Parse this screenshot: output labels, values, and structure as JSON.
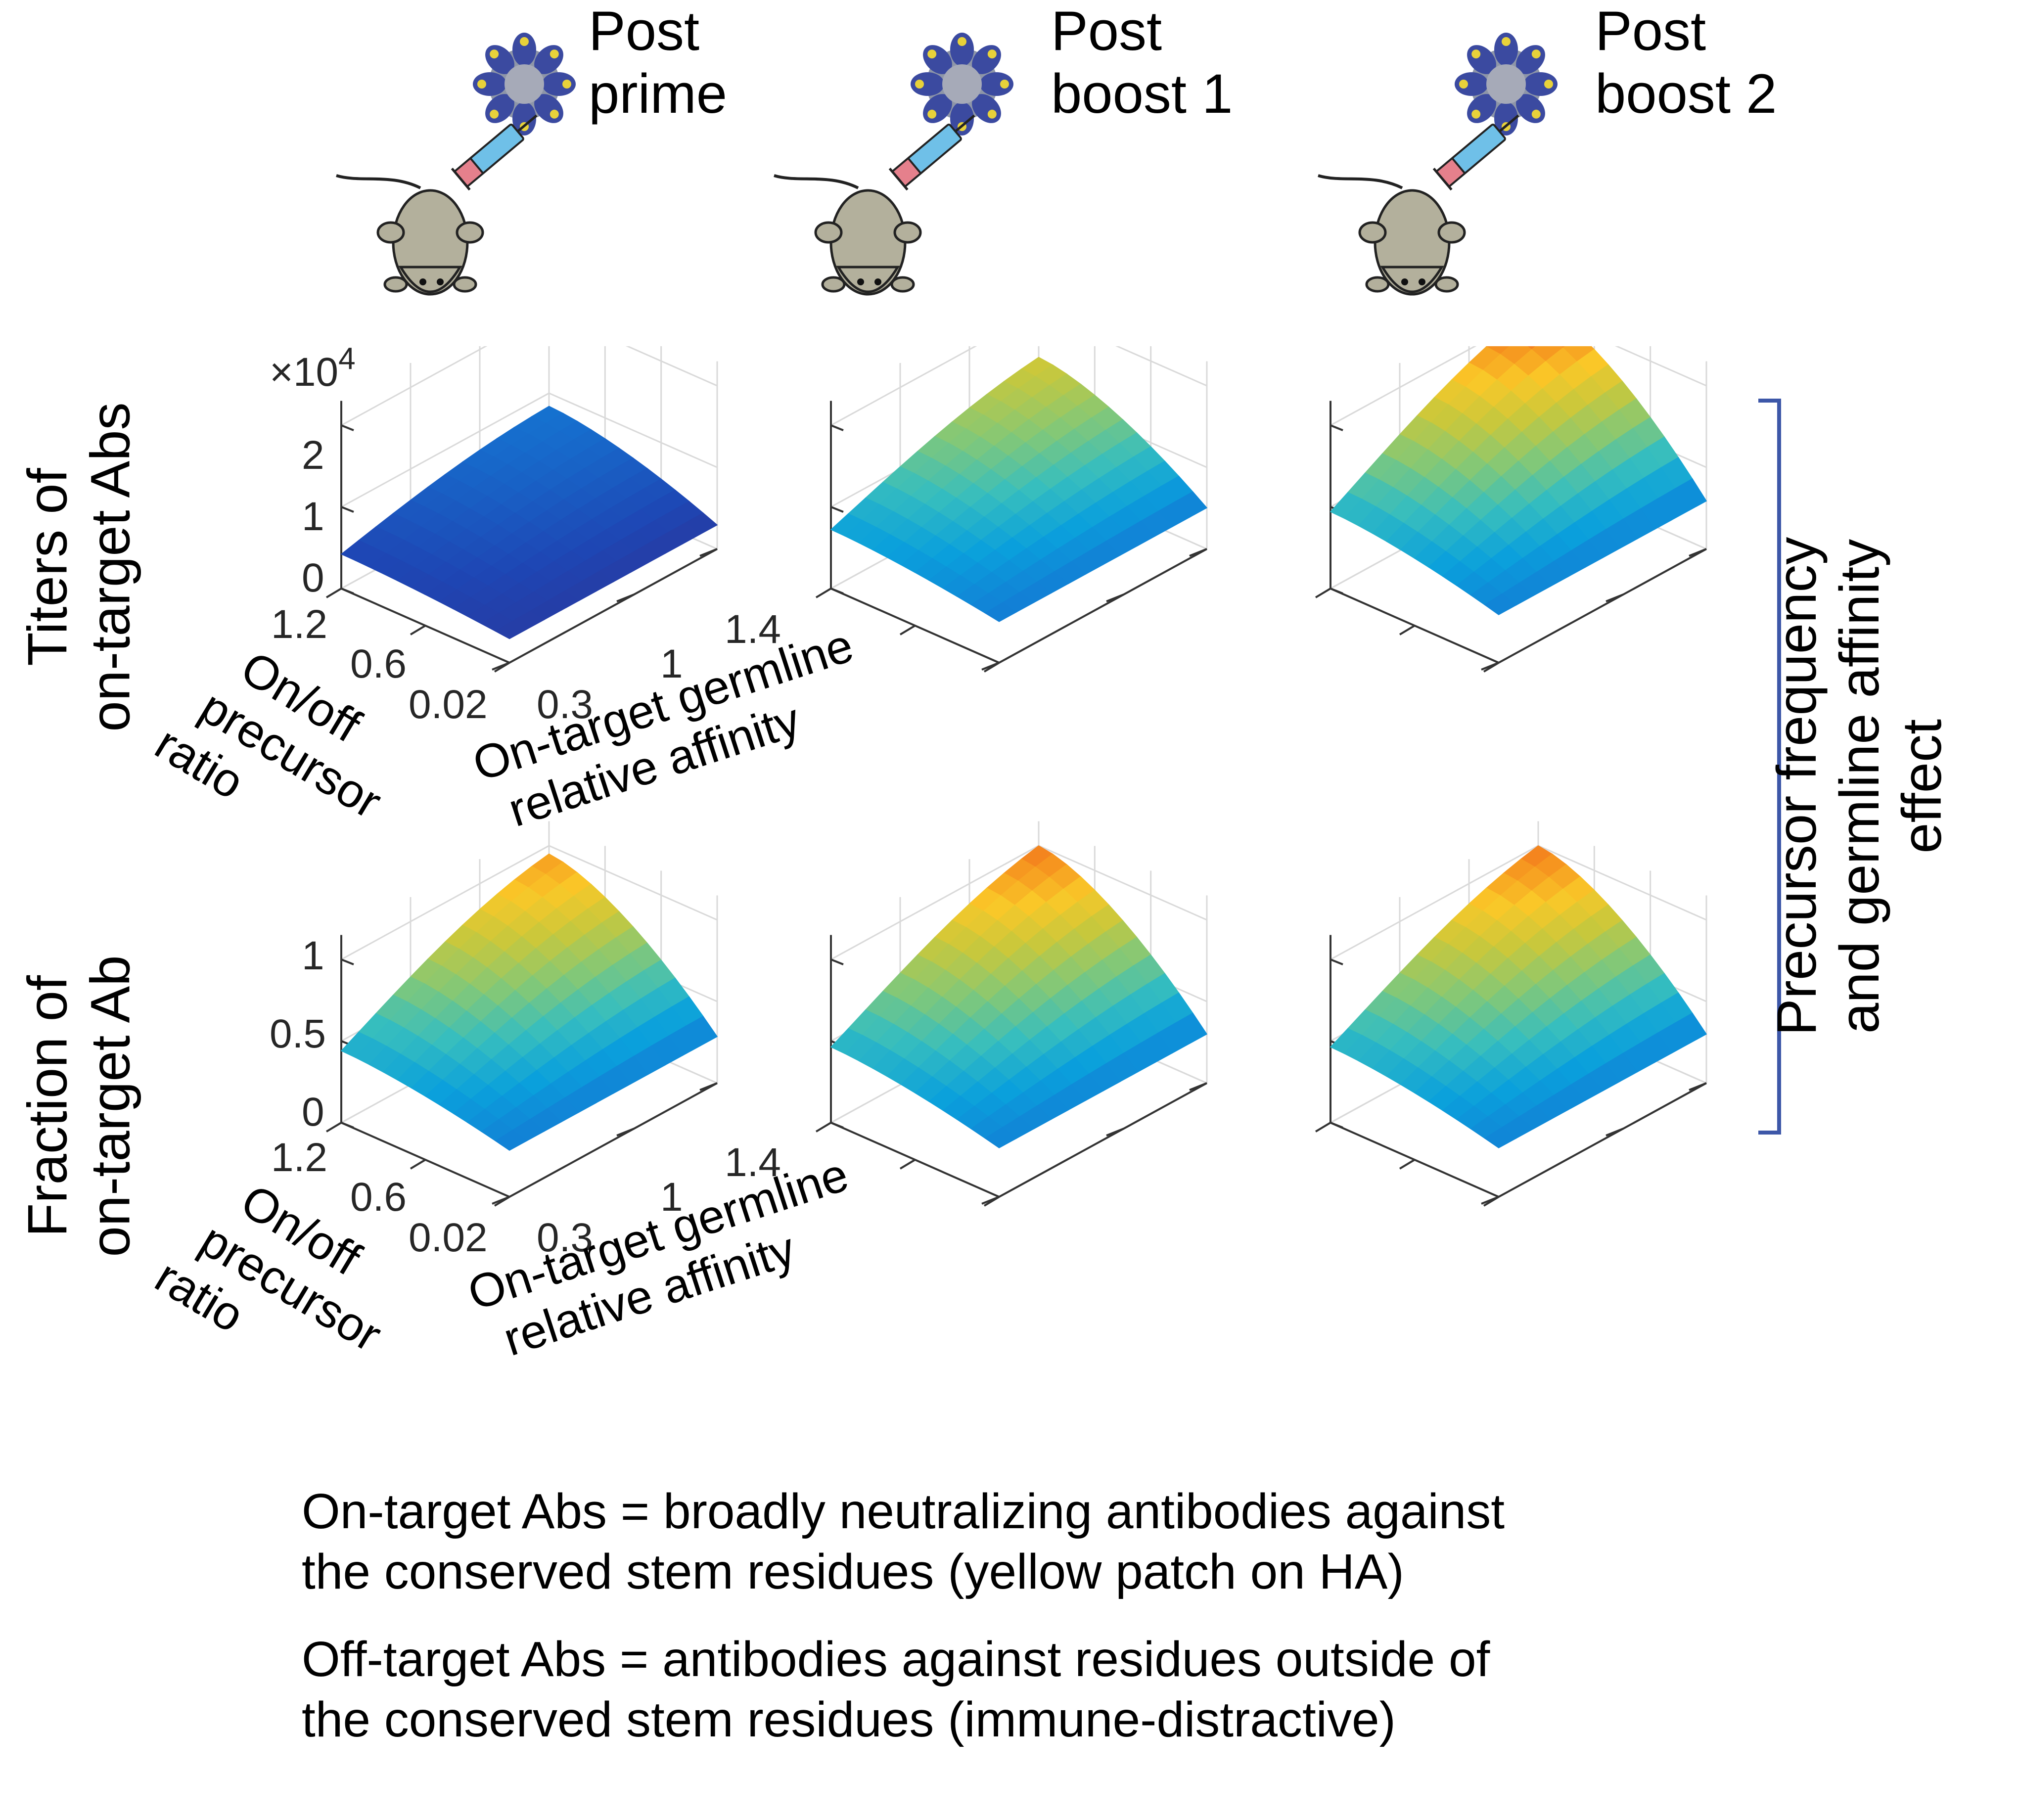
{
  "columns": [
    {
      "title_line1": "Post",
      "title_line2": "prime"
    },
    {
      "title_line1": "Post",
      "title_line2": "boost 1"
    },
    {
      "title_line1": "Post",
      "title_line2": "boost 2"
    }
  ],
  "rows": [
    {
      "label_line1": "Titers of",
      "label_line2": "on-target Abs"
    },
    {
      "label_line1": "Fraction of",
      "label_line2": "on-target Ab"
    }
  ],
  "side_label": {
    "line1": "Precursor frequency",
    "line2": "and germline affinity",
    "line3": "effect"
  },
  "axes": {
    "x_label_line1": "On/off",
    "x_label_line2": "precursor",
    "x_label_line3": "ratio",
    "x_ticks": [
      "1.2",
      "0.6",
      "0.02"
    ],
    "y_label_line1": "On-target germline",
    "y_label_line2": "relative affinity",
    "y_ticks": [
      "0.3",
      "1",
      "1.4"
    ],
    "z_ticks_titers": [
      "0",
      "1",
      "2"
    ],
    "z_exponent_prefix": "×10",
    "z_exponent_power": "4",
    "z_ticks_fraction": [
      "0",
      "0.5",
      "1"
    ]
  },
  "notes": {
    "line1": "On-target Abs = broadly neutralizing antibodies against",
    "line2": "the conserved stem residues (yellow patch on HA)",
    "line3": "Off-target Abs = antibodies against residues outside of",
    "line4": "the conserved stem residues (immune-distractive)"
  },
  "colors": {
    "bracket": "#3d57a8",
    "mouse_body": "#b3b09c",
    "syringe_tip": "#e5808c",
    "syringe_body": "#6fc0e8"
  },
  "icons": [
    "mouse-icon",
    "syringe-icon",
    "nanoparticle-icon"
  ],
  "chart_data": [
    {
      "type": "surface",
      "panel": "titers-post-prime",
      "x": "On/off precursor ratio",
      "y": "On-target germline relative affinity",
      "zlim": [
        0,
        20000
      ],
      "z_max": 4500,
      "colormap": "parula"
    },
    {
      "type": "surface",
      "panel": "titers-post-boost-1",
      "zlim": [
        0,
        20000
      ],
      "z_max": 11000,
      "colormap": "parula"
    },
    {
      "type": "surface",
      "panel": "titers-post-boost-2",
      "zlim": [
        0,
        25000
      ],
      "z_max": 22000,
      "colormap": "parula"
    },
    {
      "type": "surface",
      "panel": "fraction-post-prime",
      "zlim": [
        0,
        1
      ],
      "z_max": 0.9,
      "colormap": "parula"
    },
    {
      "type": "surface",
      "panel": "fraction-post-boost-1",
      "zlim": [
        0,
        1
      ],
      "z_max": 0.95,
      "colormap": "parula"
    },
    {
      "type": "surface",
      "panel": "fraction-post-boost-2",
      "zlim": [
        0,
        1
      ],
      "z_max": 0.95,
      "colormap": "parula"
    }
  ]
}
